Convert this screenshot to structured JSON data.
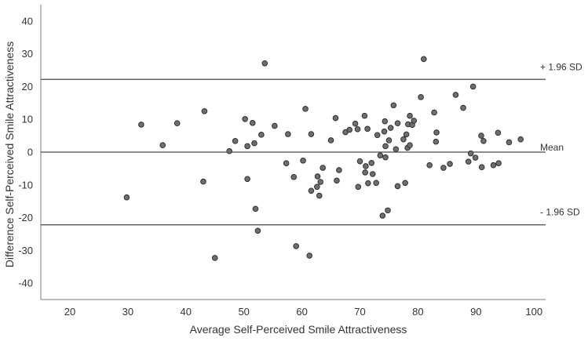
{
  "chart_data": {
    "type": "scatter",
    "title": "",
    "xlabel": "Average Self-Perceived Smile Attractiveness",
    "ylabel": "Difference Self-Perceived Smile Attractiveness",
    "xlim": [
      15,
      102
    ],
    "ylim": [
      -45,
      45
    ],
    "xticks": [
      20,
      30,
      40,
      50,
      60,
      70,
      80,
      90,
      100
    ],
    "yticks": [
      -40,
      -30,
      -20,
      -10,
      0,
      10,
      20,
      30,
      40
    ],
    "grid": false,
    "reference_lines": [
      {
        "label": "+ 1.96 SD",
        "y": 22.2
      },
      {
        "label": "Mean",
        "y": 0
      },
      {
        "label": "- 1.96 SD",
        "y": -22.2
      }
    ],
    "points": [
      [
        29.8,
        -13.8
      ],
      [
        32.3,
        8.4
      ],
      [
        36,
        2.1
      ],
      [
        38.5,
        8.8
      ],
      [
        43.2,
        12.5
      ],
      [
        43,
        -9
      ],
      [
        45,
        -32.3
      ],
      [
        47.5,
        0.3
      ],
      [
        48.5,
        3.4
      ],
      [
        50.2,
        10.1
      ],
      [
        50.6,
        1.8
      ],
      [
        50.6,
        -8.2
      ],
      [
        51.5,
        8.9
      ],
      [
        51.8,
        2.7
      ],
      [
        52,
        -17.3
      ],
      [
        52.4,
        -24
      ],
      [
        53,
        5.3
      ],
      [
        53.6,
        27.1
      ],
      [
        55.3,
        8
      ],
      [
        57.3,
        -3.4
      ],
      [
        57.6,
        5.5
      ],
      [
        58.6,
        -7.6
      ],
      [
        59,
        -28.7
      ],
      [
        60.2,
        -2.6
      ],
      [
        60.6,
        13.2
      ],
      [
        61.3,
        -31.6
      ],
      [
        61.6,
        5.5
      ],
      [
        61.6,
        -11.8
      ],
      [
        62.6,
        -10.6
      ],
      [
        62.7,
        -7.4
      ],
      [
        63,
        -13.3
      ],
      [
        63.2,
        -9.1
      ],
      [
        63.6,
        -4.8
      ],
      [
        65,
        3.6
      ],
      [
        65.8,
        10.4
      ],
      [
        66,
        -8.7
      ],
      [
        66.4,
        -5.5
      ],
      [
        67.5,
        6.1
      ],
      [
        68.2,
        6.8
      ],
      [
        69.2,
        8.7
      ],
      [
        69.6,
        7
      ],
      [
        69.7,
        -10.6
      ],
      [
        70,
        -2.8
      ],
      [
        70.8,
        11.1
      ],
      [
        70.9,
        -6.2
      ],
      [
        71,
        -4.3
      ],
      [
        71.3,
        7.1
      ],
      [
        71.4,
        -9.5
      ],
      [
        72,
        -3.3
      ],
      [
        72.2,
        -6.7
      ],
      [
        72.8,
        -9.4
      ],
      [
        73,
        5.2
      ],
      [
        73.5,
        -1
      ],
      [
        73.9,
        -19.4
      ],
      [
        74.2,
        6.3
      ],
      [
        74.3,
        9.4
      ],
      [
        74.4,
        1.8
      ],
      [
        74.4,
        -1.6
      ],
      [
        74.8,
        -17.8
      ],
      [
        75,
        3.6
      ],
      [
        75.3,
        7.4
      ],
      [
        75.8,
        14.3
      ],
      [
        76.2,
        0.9
      ],
      [
        76.5,
        8.8
      ],
      [
        76.5,
        -10.4
      ],
      [
        77.5,
        3.9
      ],
      [
        77.8,
        -9.4
      ],
      [
        78,
        5.4
      ],
      [
        78.2,
        1.3
      ],
      [
        78.3,
        8.5
      ],
      [
        78.6,
        11.1
      ],
      [
        78.6,
        2.1
      ],
      [
        79,
        8.3
      ],
      [
        79.3,
        9.6
      ],
      [
        80.5,
        16.8
      ],
      [
        81,
        28.4
      ],
      [
        82,
        -4
      ],
      [
        82.8,
        12.1
      ],
      [
        83.1,
        3.2
      ],
      [
        83.2,
        6
      ],
      [
        84.4,
        -4.8
      ],
      [
        85.5,
        -3.6
      ],
      [
        86.5,
        17.5
      ],
      [
        87.8,
        13.5
      ],
      [
        88.7,
        -2.9
      ],
      [
        89.1,
        -0.4
      ],
      [
        89.5,
        20
      ],
      [
        89.9,
        -1.7
      ],
      [
        90.9,
        5
      ],
      [
        91,
        -4.6
      ],
      [
        91.3,
        3.4
      ],
      [
        93,
        -4
      ],
      [
        93.8,
        5.9
      ],
      [
        93.9,
        -3.4
      ],
      [
        95.7,
        3
      ],
      [
        97.7,
        3.9
      ]
    ]
  }
}
